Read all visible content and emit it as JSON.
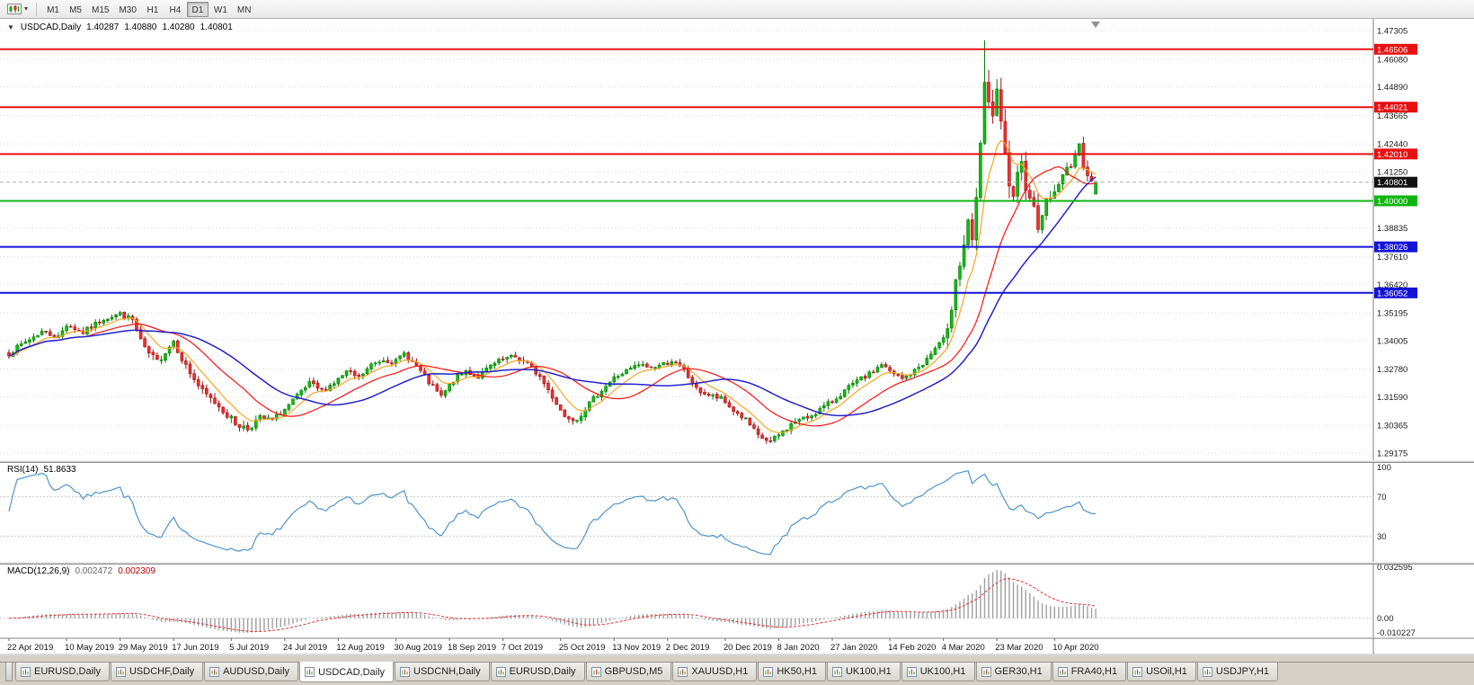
{
  "toolbar": {
    "timeframes": [
      "M1",
      "M5",
      "M15",
      "M30",
      "H1",
      "H4",
      "D1",
      "W1",
      "MN"
    ],
    "active_timeframe": "D1"
  },
  "chart_header": {
    "symbol": "USDCAD,Daily",
    "open": "1.40287",
    "high": "1.40880",
    "low": "1.40280",
    "close": "1.40801"
  },
  "price_axis": {
    "labels": [
      "1.47305",
      "1.46080",
      "1.44890",
      "1.43665",
      "1.42440",
      "1.41250",
      "1.38835",
      "1.37610",
      "1.36420",
      "1.35195",
      "1.34005",
      "1.32780",
      "1.31590",
      "1.30365",
      "1.29175"
    ],
    "current_price_tag": "1.40801"
  },
  "time_axis": {
    "labels": [
      {
        "bar": 0,
        "text": "22 Apr 2019"
      },
      {
        "bar": 14,
        "text": "10 May 2019"
      },
      {
        "bar": 27,
        "text": "29 May 2019"
      },
      {
        "bar": 40,
        "text": "17 Jun 2019"
      },
      {
        "bar": 54,
        "text": "5 Jul 2019"
      },
      {
        "bar": 67,
        "text": "24 Jul 2019"
      },
      {
        "bar": 80,
        "text": "12 Aug 2019"
      },
      {
        "bar": 94,
        "text": "30 Aug 2019"
      },
      {
        "bar": 107,
        "text": "18 Sep 2019"
      },
      {
        "bar": 120,
        "text": "7 Oct 2019"
      },
      {
        "bar": 134,
        "text": "25 Oct 2019"
      },
      {
        "bar": 147,
        "text": "13 Nov 2019"
      },
      {
        "bar": 160,
        "text": "2 Dec 2019"
      },
      {
        "bar": 174,
        "text": "20 Dec 2019"
      },
      {
        "bar": 187,
        "text": "8 Jan 2020"
      },
      {
        "bar": 200,
        "text": "27 Jan 2020"
      },
      {
        "bar": 214,
        "text": "14 Feb 2020"
      },
      {
        "bar": 227,
        "text": "4 Mar 2020"
      },
      {
        "bar": 240,
        "text": "23 Mar 2020"
      },
      {
        "bar": 254,
        "text": "10 Apr 2020"
      }
    ]
  },
  "horizontal_lines": [
    {
      "price": 1.46506,
      "tag": "1.46506",
      "color": "#e81010"
    },
    {
      "price": 1.44021,
      "tag": "1.44021",
      "color": "#e81010"
    },
    {
      "price": 1.4201,
      "tag": "1.42010",
      "color": "#e81010"
    },
    {
      "price": 1.4,
      "tag": "1.40000",
      "color": "#0eb50e"
    },
    {
      "price": 1.38026,
      "tag": "1.38026",
      "color": "#1313d6"
    },
    {
      "price": 1.36052,
      "tag": "1.36052",
      "color": "#1313d6"
    }
  ],
  "indicators": {
    "rsi": {
      "name": "RSI(14)",
      "value": "51.8633",
      "color": "#4f94cd",
      "levels": [
        70,
        30
      ],
      "axis_labels": [
        {
          "v": 100,
          "text": "100"
        },
        {
          "v": 70,
          "text": "70"
        },
        {
          "v": 30,
          "text": "30"
        }
      ]
    },
    "macd": {
      "name": "MACD(12,26,9)",
      "value_main": "0.002472",
      "value_signal": "0.002309",
      "histogram_color": "#9e9e9e",
      "signal_color": "#e03030",
      "axis_labels": [
        {
          "v": 0.032595,
          "text": "0.032595"
        },
        {
          "v": 0,
          "text": "0.00"
        },
        {
          "v": -0.010227,
          "text": "-0.010227"
        }
      ]
    }
  },
  "chart_data": {
    "type": "candlestick",
    "symbol": "USDCAD",
    "period": "Daily",
    "bars": 265,
    "price_scale": {
      "max": 1.4777,
      "min": 1.2887
    },
    "last_bar": {
      "open": 1.40287,
      "high": 1.4088,
      "low": 1.4028,
      "close": 1.40801
    },
    "peak_high": 1.4689,
    "bid_line": {
      "price": 1.40801,
      "color": "#b0b0b0"
    },
    "candle_up": {
      "fill": "#0fbf0f",
      "stroke": "#067806"
    },
    "candle_down": {
      "fill": "#f03030",
      "stroke": "#9c0f0f"
    },
    "moving_averages": [
      {
        "type": "ema",
        "period": 8,
        "color": "#f5a623",
        "width": 1.2
      },
      {
        "type": "sma",
        "period": 20,
        "color": "#ff1010",
        "width": 1.2
      },
      {
        "type": "sma",
        "period": 34,
        "color": "#2222cc",
        "width": 1.5
      }
    ],
    "noise": {
      "seed": 7,
      "base_vol": 0.0016,
      "mid_vol": 0.0022,
      "spike_vol": 0.005,
      "tail_vol": 0.003
    },
    "close_anchors": [
      [
        0,
        1.3345
      ],
      [
        4,
        1.3395
      ],
      [
        8,
        1.344
      ],
      [
        12,
        1.3415
      ],
      [
        14,
        1.347
      ],
      [
        18,
        1.3435
      ],
      [
        23,
        1.3495
      ],
      [
        27,
        1.3515
      ],
      [
        30,
        1.349
      ],
      [
        33,
        1.336
      ],
      [
        36,
        1.331
      ],
      [
        40,
        1.34
      ],
      [
        43,
        1.329
      ],
      [
        47,
        1.318
      ],
      [
        51,
        1.312
      ],
      [
        55,
        1.3045
      ],
      [
        58,
        1.3022
      ],
      [
        61,
        1.307
      ],
      [
        64,
        1.3058
      ],
      [
        67,
        1.3105
      ],
      [
        70,
        1.316
      ],
      [
        73,
        1.3215
      ],
      [
        76,
        1.3185
      ],
      [
        79,
        1.322
      ],
      [
        82,
        1.3265
      ],
      [
        85,
        1.324
      ],
      [
        88,
        1.3295
      ],
      [
        91,
        1.332
      ],
      [
        94,
        1.331
      ],
      [
        96,
        1.3345
      ],
      [
        99,
        1.329
      ],
      [
        102,
        1.322
      ],
      [
        105,
        1.316
      ],
      [
        108,
        1.323
      ],
      [
        111,
        1.327
      ],
      [
        114,
        1.3245
      ],
      [
        117,
        1.329
      ],
      [
        120,
        1.332
      ],
      [
        123,
        1.333
      ],
      [
        126,
        1.33
      ],
      [
        129,
        1.3245
      ],
      [
        132,
        1.316
      ],
      [
        135,
        1.3075
      ],
      [
        138,
        1.3065
      ],
      [
        141,
        1.313
      ],
      [
        144,
        1.319
      ],
      [
        147,
        1.324
      ],
      [
        150,
        1.327
      ],
      [
        153,
        1.3295
      ],
      [
        156,
        1.3285
      ],
      [
        159,
        1.33
      ],
      [
        161,
        1.3315
      ],
      [
        164,
        1.327
      ],
      [
        167,
        1.319
      ],
      [
        170,
        1.3165
      ],
      [
        173,
        1.315
      ],
      [
        176,
        1.31
      ],
      [
        179,
        1.306
      ],
      [
        182,
        1.299
      ],
      [
        185,
        1.2965
      ],
      [
        188,
        1.301
      ],
      [
        191,
        1.3055
      ],
      [
        194,
        1.307
      ],
      [
        197,
        1.3105
      ],
      [
        200,
        1.314
      ],
      [
        203,
        1.3185
      ],
      [
        206,
        1.3225
      ],
      [
        209,
        1.3255
      ],
      [
        212,
        1.33
      ],
      [
        214,
        1.3265
      ],
      [
        217,
        1.3235
      ],
      [
        220,
        1.327
      ],
      [
        223,
        1.332
      ],
      [
        226,
        1.339
      ],
      [
        228,
        1.342
      ],
      [
        230,
        1.369
      ],
      [
        231,
        1.3735
      ],
      [
        232,
        1.381
      ],
      [
        233,
        1.3925
      ],
      [
        234,
        1.3805
      ],
      [
        235,
        1.399
      ],
      [
        236,
        1.4245
      ],
      [
        237,
        1.448
      ],
      [
        238,
        1.444
      ],
      [
        239,
        1.4365
      ],
      [
        240,
        1.445
      ],
      [
        241,
        1.433
      ],
      [
        242,
        1.4185
      ],
      [
        243,
        1.4075
      ],
      [
        244,
        1.399
      ],
      [
        245,
        1.409
      ],
      [
        246,
        1.4145
      ],
      [
        247,
        1.408
      ],
      [
        248,
        1.4035
      ],
      [
        249,
        1.396
      ],
      [
        250,
        1.3905
      ],
      [
        251,
        1.3955
      ],
      [
        252,
        1.399
      ],
      [
        253,
        1.402
      ],
      [
        254,
        1.4035
      ],
      [
        255,
        1.408
      ],
      [
        256,
        1.41
      ],
      [
        257,
        1.4135
      ],
      [
        258,
        1.4165
      ],
      [
        259,
        1.42
      ],
      [
        260,
        1.4225
      ],
      [
        261,
        1.416
      ],
      [
        262,
        1.4125
      ],
      [
        263,
        1.409
      ],
      [
        264,
        1.40801
      ]
    ]
  },
  "tabs": {
    "items": [
      "EURUSD,Daily",
      "USDCHF,Daily",
      "AUDUSD,Daily",
      "USDCAD,Daily",
      "USDCNH,Daily",
      "EURUSD,Daily",
      "GBPUSD,M5",
      "XAUUSD,H1",
      "HK50,H1",
      "UK100,H1",
      "UK100,H1",
      "GER30,H1",
      "FRA40,H1",
      "USOil,H1",
      "USDJPY,H1"
    ],
    "active_index": 3
  }
}
